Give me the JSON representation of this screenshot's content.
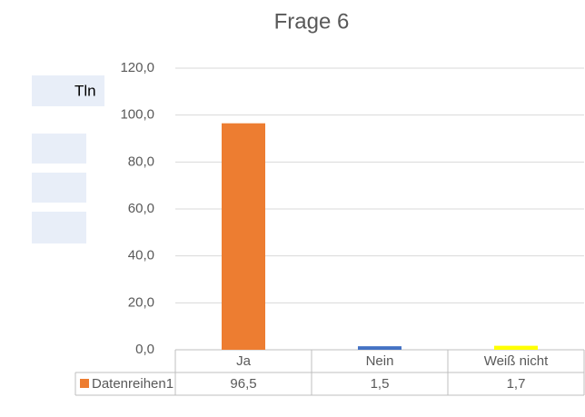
{
  "sheet": {
    "header_fragment": "Tln"
  },
  "chart_data": {
    "type": "bar",
    "title": "Frage 6",
    "categories": [
      "Ja",
      "Nein",
      "Weiß nicht"
    ],
    "series": [
      {
        "name": "Datenreihen1",
        "color": "#ED7D31",
        "point_colors": [
          "#ED7D31",
          "#4472C4",
          "#FFFF00"
        ],
        "values": [
          96.5,
          1.5,
          1.7
        ],
        "value_labels": [
          "96,5",
          "1,5",
          "1,7"
        ]
      }
    ],
    "ylim": [
      0,
      120
    ],
    "yticks": [
      {
        "value": 0,
        "label": "0,0"
      },
      {
        "value": 20,
        "label": "20,0"
      },
      {
        "value": 40,
        "label": "40,0"
      },
      {
        "value": 60,
        "label": "60,0"
      },
      {
        "value": 80,
        "label": "80,0"
      },
      {
        "value": 100,
        "label": "100,0"
      },
      {
        "value": 120,
        "label": "120,0"
      }
    ],
    "grid": true,
    "data_table": true
  }
}
